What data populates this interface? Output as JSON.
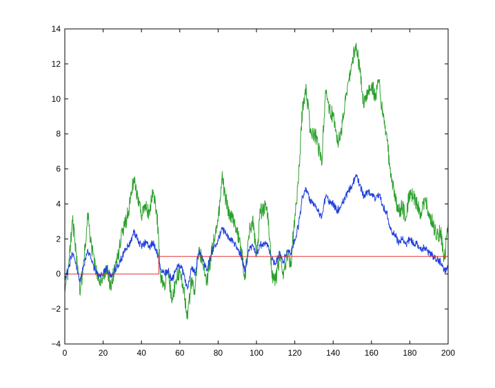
{
  "chart_data": {
    "type": "line",
    "title": "",
    "xlabel": "",
    "ylabel": "",
    "xlim": [
      0,
      200
    ],
    "ylim": [
      -4,
      14
    ],
    "grid": false,
    "legend": "none",
    "x_ticks": [
      0,
      20,
      40,
      60,
      80,
      100,
      120,
      140,
      160,
      180,
      200
    ],
    "y_ticks": [
      -4,
      -2,
      0,
      2,
      4,
      6,
      8,
      10,
      12,
      14
    ],
    "x_tick_labels": [
      "0",
      "20",
      "40",
      "60",
      "80",
      "100",
      "120",
      "140",
      "160",
      "180",
      "200"
    ],
    "y_tick_labels": [
      "−4",
      "−2",
      "0",
      "2",
      "4",
      "6",
      "8",
      "10",
      "12",
      "14"
    ],
    "series": [
      {
        "color": "#2ca02c",
        "x": [
          0,
          2,
          4,
          6,
          8,
          10,
          12,
          14,
          16,
          18,
          20,
          22,
          24,
          26,
          28,
          30,
          32,
          34,
          36,
          38,
          40,
          42,
          44,
          46,
          48,
          50,
          52,
          54,
          56,
          58,
          60,
          62,
          64,
          66,
          68,
          70,
          72,
          74,
          76,
          78,
          80,
          82,
          84,
          86,
          88,
          90,
          92,
          94,
          96,
          98,
          100,
          102,
          104,
          106,
          108,
          110,
          112,
          114,
          116,
          118,
          120,
          122,
          124,
          126,
          128,
          130,
          132,
          134,
          136,
          138,
          140,
          142,
          144,
          146,
          148,
          150,
          152,
          154,
          156,
          158,
          160,
          162,
          164,
          166,
          168,
          170,
          172,
          174,
          176,
          178,
          180,
          182,
          184,
          186,
          188,
          190,
          192,
          194,
          196,
          198,
          200
        ],
        "y": [
          -1.0,
          0.5,
          3.0,
          1.2,
          -1.2,
          0.8,
          3.3,
          1.5,
          0.2,
          -0.5,
          -0.3,
          0.5,
          -0.8,
          0.3,
          1.0,
          2.5,
          3.0,
          4.0,
          5.5,
          4.5,
          3.2,
          4.0,
          3.5,
          4.8,
          3.6,
          -0.2,
          -0.5,
          0.0,
          -1.5,
          -0.3,
          0.2,
          -0.8,
          -2.6,
          -0.5,
          -0.8,
          1.5,
          0.5,
          -0.5,
          0.8,
          2.0,
          3.0,
          5.5,
          4.2,
          3.5,
          3.2,
          2.5,
          1.5,
          -0.3,
          2.2,
          3.2,
          1.0,
          3.5,
          3.8,
          3.5,
          0.0,
          -0.4,
          1.0,
          -0.3,
          1.0,
          0.7,
          3.2,
          5.5,
          9.5,
          10.6,
          8.3,
          8.0,
          7.5,
          6.2,
          10.5,
          9.5,
          9.0,
          7.5,
          8.0,
          9.5,
          11.0,
          12.0,
          13.2,
          11.5,
          9.5,
          10.5,
          10.8,
          10.2,
          11.0,
          9.0,
          8.0,
          5.5,
          4.8,
          3.5,
          3.8,
          3.2,
          4.8,
          4.3,
          4.0,
          3.5,
          4.2,
          3.5,
          3.0,
          2.0,
          2.5,
          0.8,
          2.8
        ]
      },
      {
        "color": "#1f3fe0",
        "x": [
          0,
          2,
          4,
          6,
          8,
          10,
          12,
          14,
          16,
          18,
          20,
          22,
          24,
          26,
          28,
          30,
          32,
          34,
          36,
          38,
          40,
          42,
          44,
          46,
          48,
          50,
          52,
          54,
          56,
          58,
          60,
          62,
          64,
          66,
          68,
          70,
          72,
          74,
          76,
          78,
          80,
          82,
          84,
          86,
          88,
          90,
          92,
          94,
          96,
          98,
          100,
          102,
          104,
          106,
          108,
          110,
          112,
          114,
          116,
          118,
          120,
          122,
          124,
          126,
          128,
          130,
          132,
          134,
          136,
          138,
          140,
          142,
          144,
          146,
          148,
          150,
          152,
          154,
          156,
          158,
          160,
          162,
          164,
          166,
          168,
          170,
          172,
          174,
          176,
          178,
          180,
          182,
          184,
          186,
          188,
          190,
          192,
          194,
          196,
          198,
          200
        ],
        "y": [
          -0.3,
          0.4,
          1.2,
          0.5,
          -0.4,
          0.5,
          1.4,
          0.7,
          0.2,
          -0.1,
          0.0,
          0.3,
          -0.2,
          0.2,
          0.5,
          1.0,
          1.4,
          1.8,
          2.4,
          2.0,
          1.5,
          1.8,
          1.5,
          1.8,
          1.3,
          0.3,
          0.0,
          0.2,
          -0.4,
          0.3,
          0.5,
          0.0,
          -0.9,
          0.3,
          0.1,
          1.3,
          0.8,
          0.2,
          1.0,
          1.6,
          1.9,
          2.6,
          2.3,
          1.9,
          1.8,
          1.5,
          1.1,
          0.1,
          1.3,
          1.7,
          1.2,
          1.6,
          1.8,
          1.6,
          0.8,
          0.6,
          1.2,
          0.7,
          1.3,
          1.2,
          2.0,
          2.8,
          4.4,
          4.9,
          4.1,
          4.0,
          3.6,
          3.2,
          4.4,
          4.1,
          4.0,
          3.6,
          3.8,
          4.3,
          4.7,
          5.1,
          5.6,
          5.1,
          4.4,
          4.7,
          4.6,
          4.3,
          4.5,
          3.9,
          3.5,
          2.5,
          2.3,
          1.8,
          2.0,
          1.7,
          2.0,
          1.8,
          1.7,
          1.4,
          1.5,
          1.2,
          1.0,
          0.8,
          0.7,
          0.2,
          0.3
        ]
      },
      {
        "color": "#e03030",
        "x": [
          0,
          49,
          49,
          200
        ],
        "y": [
          0,
          0,
          1,
          1
        ]
      }
    ]
  }
}
